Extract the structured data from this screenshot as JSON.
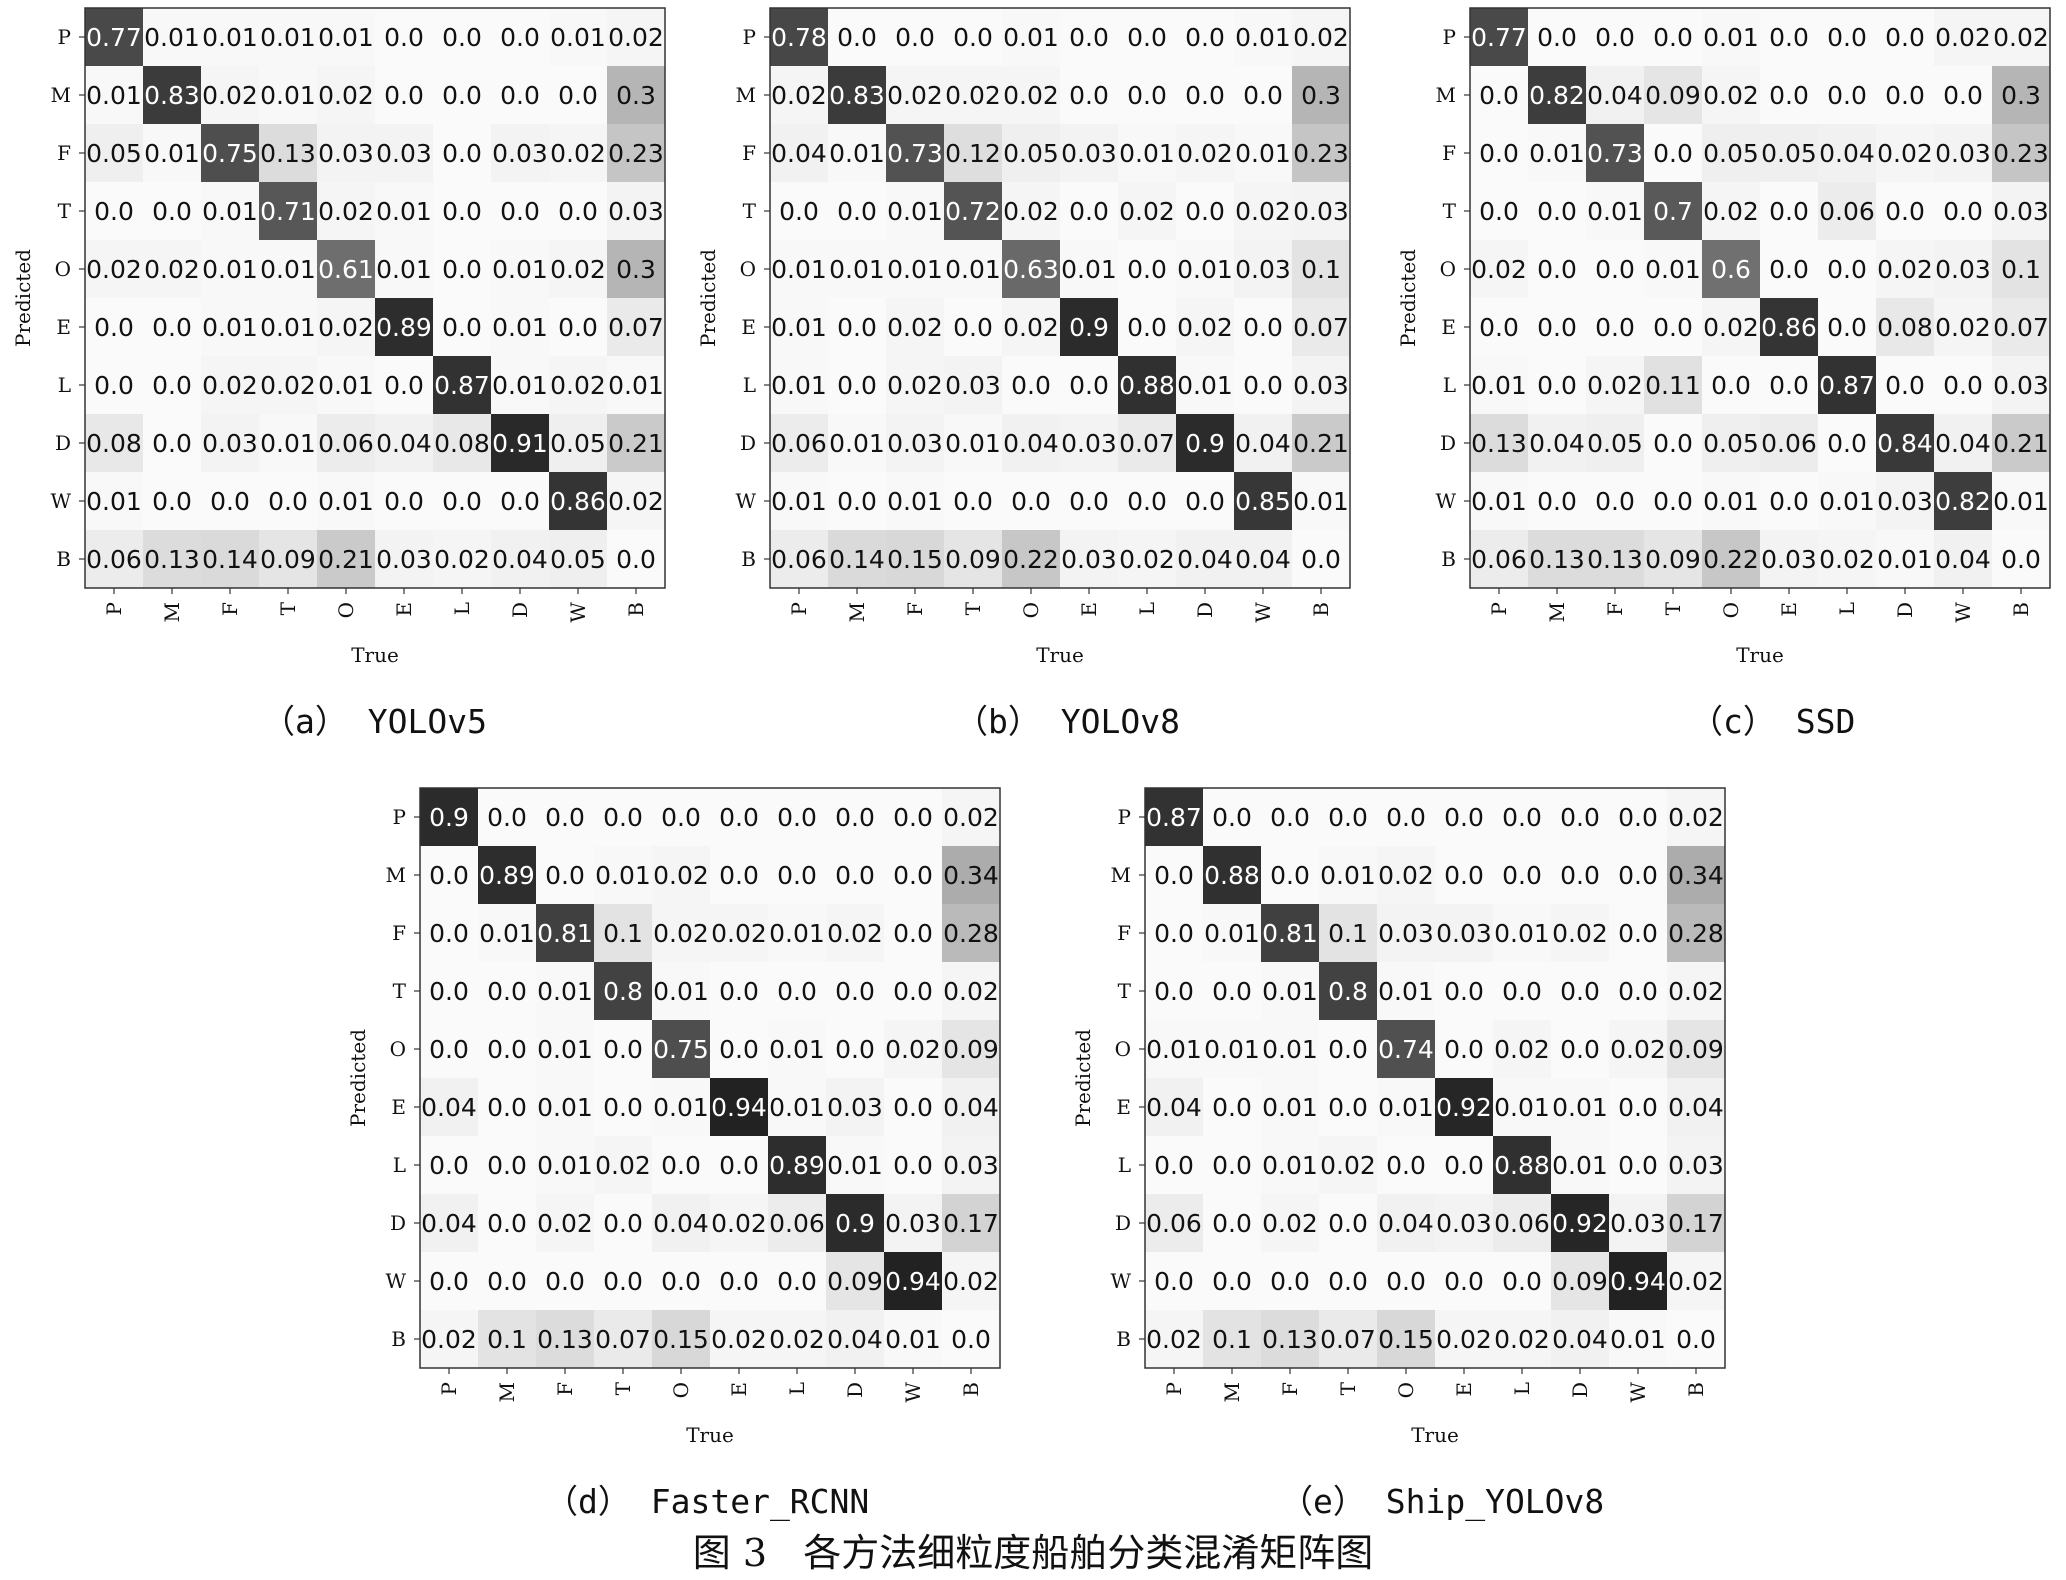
{
  "figure_title": "图 3   各方法细粒度船舶分类混淆矩阵图",
  "chart_data": [
    {
      "type": "heatmap",
      "caption": "（a） YOLOv5",
      "xlabel": "True",
      "ylabel": "Predicted",
      "x_labels": [
        "P",
        "M",
        "F",
        "T",
        "O",
        "E",
        "L",
        "D",
        "W",
        "B"
      ],
      "y_labels": [
        "P",
        "M",
        "F",
        "T",
        "O",
        "E",
        "L",
        "D",
        "W",
        "B"
      ],
      "values": [
        [
          "0.77",
          "0.01",
          "0.01",
          "0.01",
          "0.01",
          "0.0",
          "0.0",
          "0.0",
          "0.01",
          "0.02"
        ],
        [
          "0.01",
          "0.83",
          "0.02",
          "0.01",
          "0.02",
          "0.0",
          "0.0",
          "0.0",
          "0.0",
          "0.3"
        ],
        [
          "0.05",
          "0.01",
          "0.75",
          "0.13",
          "0.03",
          "0.03",
          "0.0",
          "0.03",
          "0.02",
          "0.23"
        ],
        [
          "0.0",
          "0.0",
          "0.01",
          "0.71",
          "0.02",
          "0.01",
          "0.0",
          "0.0",
          "0.0",
          "0.03"
        ],
        [
          "0.02",
          "0.02",
          "0.01",
          "0.01",
          "0.61",
          "0.01",
          "0.0",
          "0.01",
          "0.02",
          "0.3"
        ],
        [
          "0.0",
          "0.0",
          "0.01",
          "0.01",
          "0.02",
          "0.89",
          "0.0",
          "0.01",
          "0.0",
          "0.07"
        ],
        [
          "0.0",
          "0.0",
          "0.02",
          "0.02",
          "0.01",
          "0.0",
          "0.87",
          "0.01",
          "0.02",
          "0.01"
        ],
        [
          "0.08",
          "0.0",
          "0.03",
          "0.01",
          "0.06",
          "0.04",
          "0.08",
          "0.91",
          "0.05",
          "0.21"
        ],
        [
          "0.01",
          "0.0",
          "0.0",
          "0.0",
          "0.01",
          "0.0",
          "0.0",
          "0.0",
          "0.86",
          "0.02"
        ],
        [
          "0.06",
          "0.13",
          "0.14",
          "0.09",
          "0.21",
          "0.03",
          "0.02",
          "0.04",
          "0.05",
          "0.0"
        ]
      ]
    },
    {
      "type": "heatmap",
      "caption": "（b） YOLOv8",
      "xlabel": "True",
      "ylabel": "Predicted",
      "x_labels": [
        "P",
        "M",
        "F",
        "T",
        "O",
        "E",
        "L",
        "D",
        "W",
        "B"
      ],
      "y_labels": [
        "P",
        "M",
        "F",
        "T",
        "O",
        "E",
        "L",
        "D",
        "W",
        "B"
      ],
      "values": [
        [
          "0.78",
          "0.0",
          "0.0",
          "0.0",
          "0.01",
          "0.0",
          "0.0",
          "0.0",
          "0.01",
          "0.02"
        ],
        [
          "0.02",
          "0.83",
          "0.02",
          "0.02",
          "0.02",
          "0.0",
          "0.0",
          "0.0",
          "0.0",
          "0.3"
        ],
        [
          "0.04",
          "0.01",
          "0.73",
          "0.12",
          "0.05",
          "0.03",
          "0.01",
          "0.02",
          "0.01",
          "0.23"
        ],
        [
          "0.0",
          "0.0",
          "0.01",
          "0.72",
          "0.02",
          "0.0",
          "0.02",
          "0.0",
          "0.02",
          "0.03"
        ],
        [
          "0.01",
          "0.01",
          "0.01",
          "0.01",
          "0.63",
          "0.01",
          "0.0",
          "0.01",
          "0.03",
          "0.1"
        ],
        [
          "0.01",
          "0.0",
          "0.02",
          "0.0",
          "0.02",
          "0.9",
          "0.0",
          "0.02",
          "0.0",
          "0.07"
        ],
        [
          "0.01",
          "0.0",
          "0.02",
          "0.03",
          "0.0",
          "0.0",
          "0.88",
          "0.01",
          "0.0",
          "0.03"
        ],
        [
          "0.06",
          "0.01",
          "0.03",
          "0.01",
          "0.04",
          "0.03",
          "0.07",
          "0.9",
          "0.04",
          "0.21"
        ],
        [
          "0.01",
          "0.0",
          "0.01",
          "0.0",
          "0.0",
          "0.0",
          "0.0",
          "0.0",
          "0.85",
          "0.01"
        ],
        [
          "0.06",
          "0.14",
          "0.15",
          "0.09",
          "0.22",
          "0.03",
          "0.02",
          "0.04",
          "0.04",
          "0.0"
        ]
      ]
    },
    {
      "type": "heatmap",
      "caption": "（c） SSD",
      "xlabel": "True",
      "ylabel": "Predicted",
      "x_labels": [
        "P",
        "M",
        "F",
        "T",
        "O",
        "E",
        "L",
        "D",
        "W",
        "B"
      ],
      "y_labels": [
        "P",
        "M",
        "F",
        "T",
        "O",
        "E",
        "L",
        "D",
        "W",
        "B"
      ],
      "values": [
        [
          "0.77",
          "0.0",
          "0.0",
          "0.0",
          "0.01",
          "0.0",
          "0.0",
          "0.0",
          "0.02",
          "0.02"
        ],
        [
          "0.0",
          "0.82",
          "0.04",
          "0.09",
          "0.02",
          "0.0",
          "0.0",
          "0.0",
          "0.0",
          "0.3"
        ],
        [
          "0.0",
          "0.01",
          "0.73",
          "0.0",
          "0.05",
          "0.05",
          "0.04",
          "0.02",
          "0.03",
          "0.23"
        ],
        [
          "0.0",
          "0.0",
          "0.01",
          "0.7",
          "0.02",
          "0.0",
          "0.06",
          "0.0",
          "0.0",
          "0.03"
        ],
        [
          "0.02",
          "0.0",
          "0.0",
          "0.01",
          "0.6",
          "0.0",
          "0.0",
          "0.02",
          "0.03",
          "0.1"
        ],
        [
          "0.0",
          "0.0",
          "0.0",
          "0.0",
          "0.02",
          "0.86",
          "0.0",
          "0.08",
          "0.02",
          "0.07"
        ],
        [
          "0.01",
          "0.0",
          "0.02",
          "0.11",
          "0.0",
          "0.0",
          "0.87",
          "0.0",
          "0.0",
          "0.03"
        ],
        [
          "0.13",
          "0.04",
          "0.05",
          "0.0",
          "0.05",
          "0.06",
          "0.0",
          "0.84",
          "0.04",
          "0.21"
        ],
        [
          "0.01",
          "0.0",
          "0.0",
          "0.0",
          "0.01",
          "0.0",
          "0.01",
          "0.03",
          "0.82",
          "0.01"
        ],
        [
          "0.06",
          "0.13",
          "0.13",
          "0.09",
          "0.22",
          "0.03",
          "0.02",
          "0.01",
          "0.04",
          "0.0"
        ]
      ]
    },
    {
      "type": "heatmap",
      "caption": "（d） Faster_RCNN",
      "xlabel": "True",
      "ylabel": "Predicted",
      "x_labels": [
        "P",
        "M",
        "F",
        "T",
        "O",
        "E",
        "L",
        "D",
        "W",
        "B"
      ],
      "y_labels": [
        "P",
        "M",
        "F",
        "T",
        "O",
        "E",
        "L",
        "D",
        "W",
        "B"
      ],
      "values": [
        [
          "0.9",
          "0.0",
          "0.0",
          "0.0",
          "0.0",
          "0.0",
          "0.0",
          "0.0",
          "0.0",
          "0.02"
        ],
        [
          "0.0",
          "0.89",
          "0.0",
          "0.01",
          "0.02",
          "0.0",
          "0.0",
          "0.0",
          "0.0",
          "0.34"
        ],
        [
          "0.0",
          "0.01",
          "0.81",
          "0.1",
          "0.02",
          "0.02",
          "0.01",
          "0.02",
          "0.0",
          "0.28"
        ],
        [
          "0.0",
          "0.0",
          "0.01",
          "0.8",
          "0.01",
          "0.0",
          "0.0",
          "0.0",
          "0.0",
          "0.02"
        ],
        [
          "0.0",
          "0.0",
          "0.01",
          "0.0",
          "0.75",
          "0.0",
          "0.01",
          "0.0",
          "0.02",
          "0.09"
        ],
        [
          "0.04",
          "0.0",
          "0.01",
          "0.0",
          "0.01",
          "0.94",
          "0.01",
          "0.03",
          "0.0",
          "0.04"
        ],
        [
          "0.0",
          "0.0",
          "0.01",
          "0.02",
          "0.0",
          "0.0",
          "0.89",
          "0.01",
          "0.0",
          "0.03"
        ],
        [
          "0.04",
          "0.0",
          "0.02",
          "0.0",
          "0.04",
          "0.02",
          "0.06",
          "0.9",
          "0.03",
          "0.17"
        ],
        [
          "0.0",
          "0.0",
          "0.0",
          "0.0",
          "0.0",
          "0.0",
          "0.0",
          "0.09",
          "0.94",
          "0.02"
        ],
        [
          "0.02",
          "0.1",
          "0.13",
          "0.07",
          "0.15",
          "0.02",
          "0.02",
          "0.04",
          "0.01",
          "0.0"
        ]
      ]
    },
    {
      "type": "heatmap",
      "caption": "（e） Ship_YOLOv8",
      "xlabel": "True",
      "ylabel": "Predicted",
      "x_labels": [
        "P",
        "M",
        "F",
        "T",
        "O",
        "E",
        "L",
        "D",
        "W",
        "B"
      ],
      "y_labels": [
        "P",
        "M",
        "F",
        "T",
        "O",
        "E",
        "L",
        "D",
        "W",
        "B"
      ],
      "values": [
        [
          "0.87",
          "0.0",
          "0.0",
          "0.0",
          "0.0",
          "0.0",
          "0.0",
          "0.0",
          "0.0",
          "0.02"
        ],
        [
          "0.0",
          "0.88",
          "0.0",
          "0.01",
          "0.02",
          "0.0",
          "0.0",
          "0.0",
          "0.0",
          "0.34"
        ],
        [
          "0.0",
          "0.01",
          "0.81",
          "0.1",
          "0.03",
          "0.03",
          "0.01",
          "0.02",
          "0.0",
          "0.28"
        ],
        [
          "0.0",
          "0.0",
          "0.01",
          "0.8",
          "0.01",
          "0.0",
          "0.0",
          "0.0",
          "0.0",
          "0.02"
        ],
        [
          "0.01",
          "0.01",
          "0.01",
          "0.0",
          "0.74",
          "0.0",
          "0.02",
          "0.0",
          "0.02",
          "0.09"
        ],
        [
          "0.04",
          "0.0",
          "0.01",
          "0.0",
          "0.01",
          "0.92",
          "0.01",
          "0.01",
          "0.0",
          "0.04"
        ],
        [
          "0.0",
          "0.0",
          "0.01",
          "0.02",
          "0.0",
          "0.0",
          "0.88",
          "0.01",
          "0.0",
          "0.03"
        ],
        [
          "0.06",
          "0.0",
          "0.02",
          "0.0",
          "0.04",
          "0.03",
          "0.06",
          "0.92",
          "0.03",
          "0.17"
        ],
        [
          "0.0",
          "0.0",
          "0.0",
          "0.0",
          "0.0",
          "0.0",
          "0.0",
          "0.09",
          "0.94",
          "0.02"
        ],
        [
          "0.02",
          "0.1",
          "0.13",
          "0.07",
          "0.15",
          "0.02",
          "0.02",
          "0.04",
          "0.01",
          "0.0"
        ]
      ]
    }
  ]
}
